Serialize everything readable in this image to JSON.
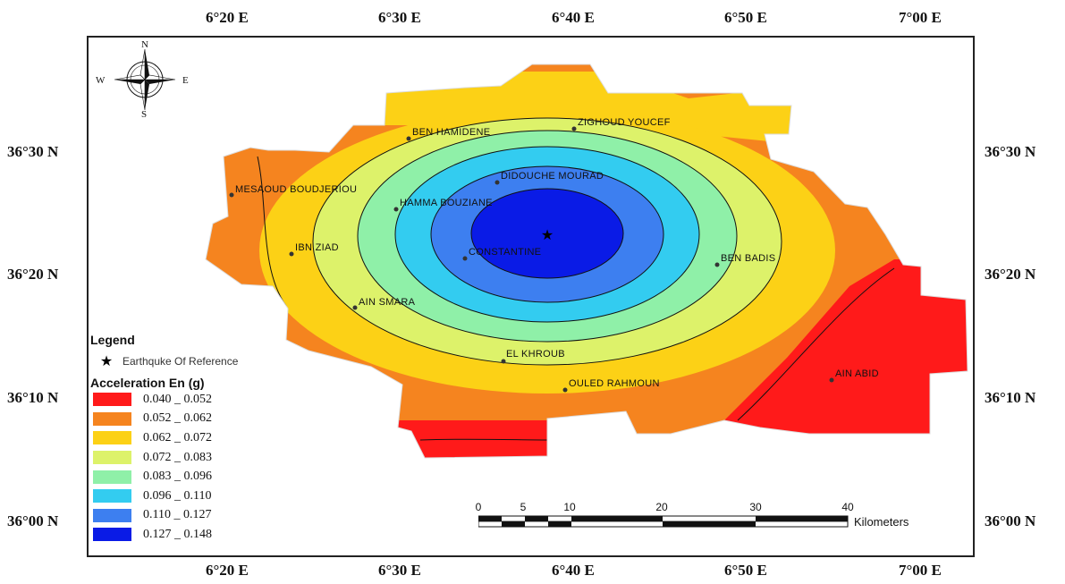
{
  "axes": {
    "top_ticks": [
      "6°20 E",
      "6°30 E",
      "6°40 E",
      "6°50 E",
      "7°00 E"
    ],
    "bottom_ticks": [
      "6°20 E",
      "6°30 E",
      "6°40 E",
      "6°50 E",
      "7°00 E"
    ],
    "left_ticks": [
      "36°30 N",
      "36°20 N",
      "36°10 N",
      "36°00 N"
    ],
    "right_ticks": [
      "36°30 N",
      "36°20 N",
      "36°10 N",
      "36°00 N"
    ]
  },
  "compass": {
    "north": "N",
    "south": "S",
    "east": "E",
    "west": "W"
  },
  "towns": [
    {
      "name": "BEN HAMIDENE"
    },
    {
      "name": "ZIGHOUD YOUCEF"
    },
    {
      "name": "DIDOUCHE MOURAD"
    },
    {
      "name": "MESAOUD BOUDJERIOU"
    },
    {
      "name": "HAMMA BOUZIANE"
    },
    {
      "name": "IBN ZIAD"
    },
    {
      "name": "CONSTANTINE"
    },
    {
      "name": "BEN BADIS"
    },
    {
      "name": "AIN SMARA"
    },
    {
      "name": "EL KHROUB"
    },
    {
      "name": "OULED RAHMOUN"
    },
    {
      "name": "AIN ABID"
    }
  ],
  "legend": {
    "title": "Legend",
    "quake_label": "Earthquke Of Reference",
    "acc_title": "Acceleration En (g)",
    "classes": [
      {
        "range": "0.040 _ 0.052",
        "color": "#ff1a1a"
      },
      {
        "range": "0.052 _ 0.062",
        "color": "#f5841f"
      },
      {
        "range": "0.062 _ 0.072",
        "color": "#fcd116"
      },
      {
        "range": "0.072 _ 0.083",
        "color": "#ddf26a"
      },
      {
        "range": "0.083 _ 0.096",
        "color": "#8ff0a8"
      },
      {
        "range": "0.096 _ 0.110",
        "color": "#33ccf0"
      },
      {
        "range": "0.110 _ 0.127",
        "color": "#3d7ff0"
      },
      {
        "range": "0.127 _ 0.148",
        "color": "#0a1be6"
      }
    ]
  },
  "scale": {
    "ticks": [
      "0",
      "5",
      "10",
      "20",
      "30",
      "40"
    ],
    "unit": "Kilometers"
  }
}
